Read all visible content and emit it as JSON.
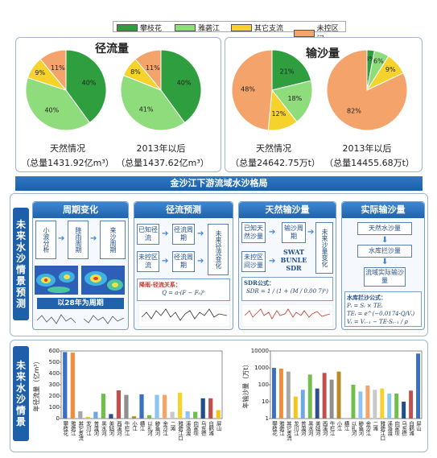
{
  "legend": [
    {
      "label": "攀枝花",
      "color": "#2e9e3e"
    },
    {
      "label": "雅砻江",
      "color": "#8fdc7c"
    },
    {
      "label": "其它支流",
      "color": "#f5d22c"
    },
    {
      "label": "未控区间",
      "color": "#f4a36a"
    }
  ],
  "runoff": {
    "title": "径流量",
    "charts": [
      {
        "caption": "天然情况",
        "total": "（总量1431.92亿m³）",
        "slices": [
          {
            "label": "40%",
            "value": 40,
            "color": "#2e9e3e"
          },
          {
            "label": "40%",
            "value": 40,
            "color": "#8fdc7c"
          },
          {
            "label": "9%",
            "value": 9,
            "color": "#f5d22c"
          },
          {
            "label": "11%",
            "value": 11,
            "color": "#f4a36a"
          }
        ]
      },
      {
        "caption": "2013年以后",
        "total": "（总量1437.62亿m³）",
        "slices": [
          {
            "label": "40%",
            "value": 40,
            "color": "#2e9e3e"
          },
          {
            "label": "41%",
            "value": 41,
            "color": "#8fdc7c"
          },
          {
            "label": "8%",
            "value": 8,
            "color": "#f5d22c"
          },
          {
            "label": "11%",
            "value": 11,
            "color": "#f4a36a"
          }
        ]
      }
    ]
  },
  "sediment": {
    "title": "输沙量",
    "charts": [
      {
        "caption": "天然情况",
        "total": "（总量24642.75万t）",
        "slices": [
          {
            "label": "21%",
            "value": 21,
            "color": "#2e9e3e"
          },
          {
            "label": "18%",
            "value": 18,
            "color": "#8fdc7c"
          },
          {
            "label": "12%",
            "value": 12,
            "color": "#f5d22c"
          },
          {
            "label": "48%",
            "value": 48,
            "color": "#f4a36a"
          }
        ]
      },
      {
        "caption": "2013年以后",
        "total": "（总量14455.68万t）",
        "slices": [
          {
            "label": "3%",
            "value": 3,
            "color": "#2e9e3e"
          },
          {
            "label": "6%",
            "value": 6,
            "color": "#8fdc7c"
          },
          {
            "label": "9%",
            "value": 9,
            "color": "#f5d22c"
          },
          {
            "label": "82%",
            "value": 82,
            "color": "#f4a36a"
          }
        ]
      }
    ]
  },
  "banner1": "金沙江下游流域水沙格局",
  "side1": "未来水沙情景预测",
  "side2": "未来水沙情景",
  "steps": {
    "s1": {
      "title": "周期变化",
      "boxes": [
        "小波分析",
        "降雨周期",
        "来沙周期"
      ],
      "note": "以28年为周期"
    },
    "s2": {
      "title": "径流预测",
      "boxes": [
        "已知径流",
        "径流周期",
        "未来径流变化",
        "未控区流",
        "径流周期"
      ],
      "formula_label": "降雨-径流关系：",
      "formula": "Q = a·(F − F₀)ᵇ"
    },
    "s3": {
      "title": "天然输沙量",
      "boxes": [
        "已知天然沙量",
        "输沙周期",
        "未来沙量变化",
        "未控区间沙量",
        "SWAT",
        "BUNLE",
        "SDR"
      ],
      "formula_label": "SDR公式：",
      "formula": "SDR = 1 / (1 + (M / 0.00 7)ᵇ)"
    },
    "s4": {
      "title": "实际输沙量",
      "boxes": [
        "天然水沙量",
        "水库拦沙量",
        "流域实际输沙量"
      ],
      "formula_label": "水库拦沙公式：",
      "formulas": [
        "Pᵢ = Sᵢ × TEᵢ",
        "TEᵢ = e^(−0.0174·Q/Vᵢ)",
        "Vᵢ = Vᵢ₋₁ − TE·Sᵢ₋₁ / ρ"
      ]
    }
  },
  "chart_data": [
    {
      "type": "bar",
      "ylabel": "年径流量（亿m³）",
      "ylim": [
        0,
        600
      ],
      "yticks": [
        "0",
        "100",
        "200",
        "300",
        "400",
        "500",
        "600"
      ],
      "categories": [
        "攀枝花",
        "雅砻江",
        "其它支流",
        "龙川江",
        "普渡河",
        "黑水河",
        "美姑河",
        "西溪河",
        "牛栏江",
        "小江",
        "横江",
        "以礼河",
        "鲹鱼河",
        "金沙江",
        "二滩",
        "雅砻江口",
        "溪洛渡",
        "向家坝",
        "乌东德",
        "白鹤滩",
        "屏山"
      ],
      "values": [
        590,
        585,
        65,
        15,
        60,
        220,
        40,
        250,
        210,
        20,
        215,
        30,
        210,
        210,
        60,
        230,
        65,
        60,
        180,
        180,
        75
      ],
      "colors": [
        "#3b6fc0",
        "#f08d3a",
        "#a8a8a8",
        "#f5c518",
        "#6fa8dc",
        "#6fbf4a",
        "#2f4f8f",
        "#c0504d",
        "#8e8e8e",
        "#b88a1f",
        "#3b6fc0",
        "#6fbf4a",
        "#8ec5f0",
        "#f4a36a",
        "#c9c9c9",
        "#f5d22c",
        "#8ec5f0",
        "#6fbf4a",
        "#1f4e8c",
        "#c0504d",
        "#f5c518"
      ]
    },
    {
      "type": "bar",
      "ylabel": "年输沙量（万t）",
      "yscale": "log",
      "ylim": [
        1,
        10000
      ],
      "yticks": [
        "1",
        "10",
        "100",
        "1000",
        "10000"
      ],
      "categories": [
        "攀枝花",
        "雅砻江",
        "其它支流",
        "龙川江",
        "普渡河",
        "黑水河",
        "美姑河",
        "西溪河",
        "牛栏江",
        "小江",
        "横江",
        "以礼河",
        "鲹鱼河",
        "金沙江",
        "二滩",
        "雅砻江口",
        "溪洛渡",
        "向家坝",
        "乌东德",
        "白鹤滩",
        "屏山"
      ],
      "values": [
        1000,
        900,
        600,
        20,
        50,
        400,
        60,
        500,
        200,
        600,
        1,
        100,
        40,
        90,
        50,
        60,
        30,
        30,
        10,
        45,
        7000
      ],
      "colors": [
        "#3b6fc0",
        "#f08d3a",
        "#a8a8a8",
        "#f5c518",
        "#6fa8dc",
        "#6fbf4a",
        "#2f4f8f",
        "#c0504d",
        "#8e8e8e",
        "#b88a1f",
        "#3b6fc0",
        "#6fbf4a",
        "#8ec5f0",
        "#f4a36a",
        "#c9c9c9",
        "#f5d22c",
        "#8ec5f0",
        "#6fbf4a",
        "#1f4e8c",
        "#c0504d",
        "#3b6fc0"
      ]
    }
  ]
}
